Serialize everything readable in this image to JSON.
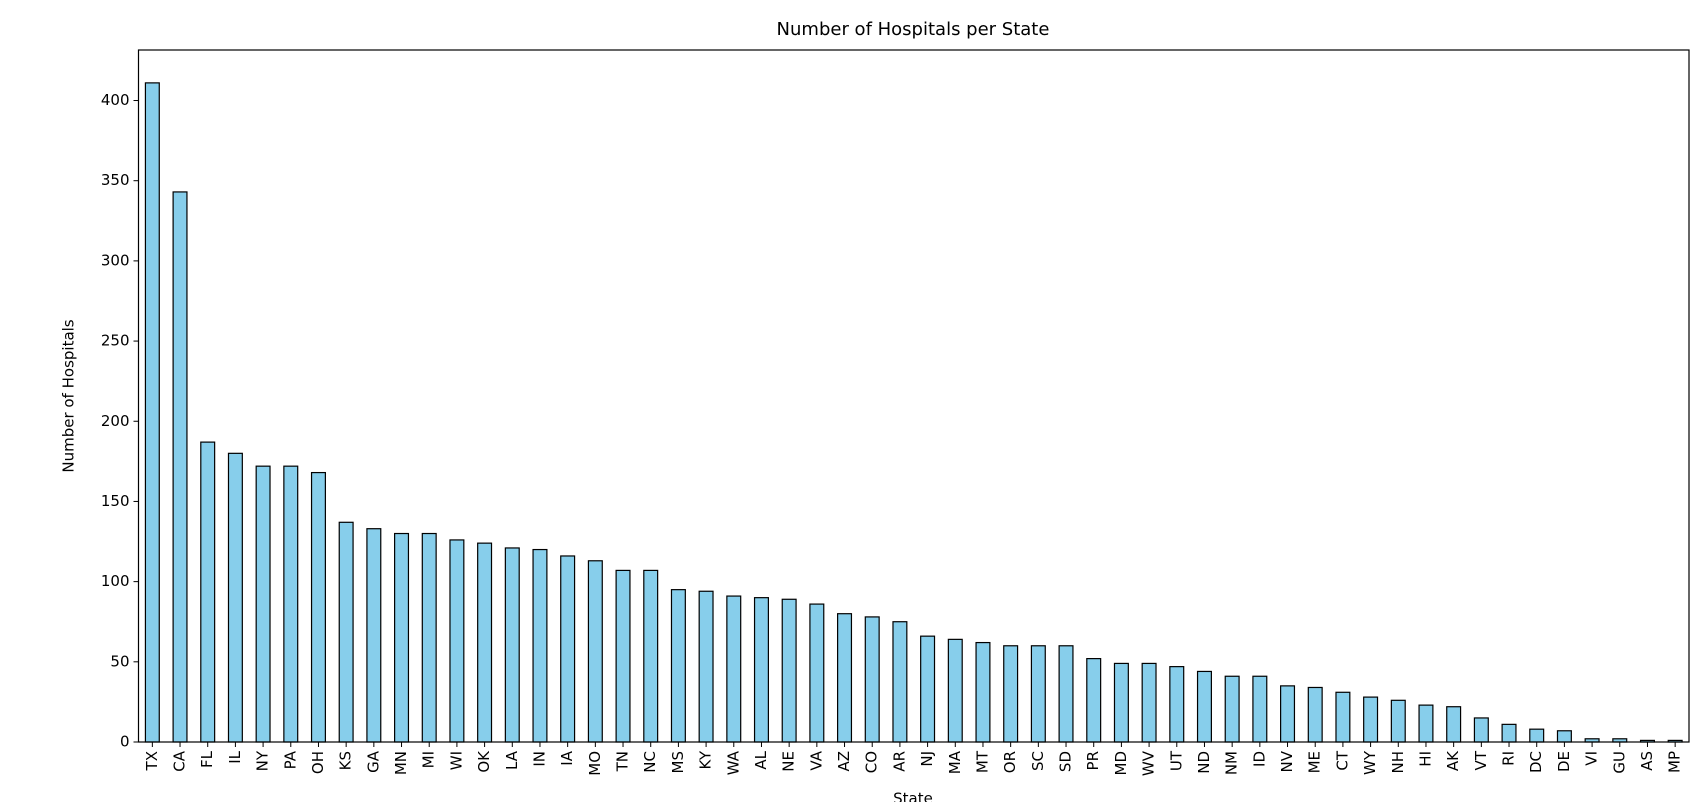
{
  "chart_data": {
    "type": "bar",
    "title": "Number of Hospitals per State",
    "x_label": "State",
    "y_label": "Number of Hospitals",
    "categories": [
      "TX",
      "CA",
      "FL",
      "IL",
      "NY",
      "PA",
      "OH",
      "KS",
      "GA",
      "MN",
      "MI",
      "WI",
      "OK",
      "LA",
      "IN",
      "IA",
      "MO",
      "TN",
      "NC",
      "MS",
      "KY",
      "WA",
      "AL",
      "NE",
      "VA",
      "AZ",
      "CO",
      "AR",
      "NJ",
      "MA",
      "MT",
      "OR",
      "SC",
      "SD",
      "PR",
      "MD",
      "WV",
      "UT",
      "ND",
      "NM",
      "ID",
      "NV",
      "ME",
      "CT",
      "WY",
      "NH",
      "HI",
      "AK",
      "VT",
      "RI",
      "DC",
      "DE",
      "VI",
      "GU",
      "AS",
      "MP"
    ],
    "values": [
      411,
      343,
      187,
      180,
      172,
      172,
      168,
      137,
      133,
      130,
      130,
      126,
      124,
      121,
      120,
      116,
      113,
      107,
      107,
      95,
      94,
      91,
      90,
      89,
      86,
      80,
      78,
      75,
      66,
      64,
      62,
      60,
      60,
      60,
      52,
      49,
      49,
      47,
      44,
      41,
      41,
      35,
      34,
      31,
      28,
      26,
      23,
      22,
      15,
      11,
      8,
      7,
      2,
      2,
      1,
      1
    ],
    "color": "#87ceeb",
    "edge_color": "#000000",
    "ylim": [
      0,
      431.5
    ],
    "yticks": [
      0,
      50,
      100,
      150,
      200,
      250,
      300,
      350,
      400
    ],
    "grid": false
  }
}
